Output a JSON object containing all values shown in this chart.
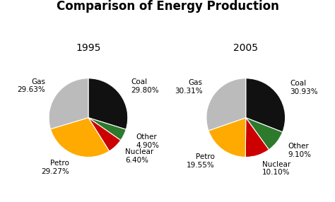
{
  "title": "Comparison of Energy Production",
  "title_fontsize": 12,
  "title_fontweight": "bold",
  "chart1_year": "1995",
  "chart2_year": "2005",
  "categories": [
    "Coal",
    "Other",
    "Nuclear",
    "Petro",
    "Gas"
  ],
  "colors": [
    "#111111",
    "#2d7a2d",
    "#cc0000",
    "#ffaa00",
    "#bbbbbb"
  ],
  "values_1995": [
    29.8,
    4.9,
    6.4,
    29.27,
    29.63
  ],
  "values_2005": [
    30.93,
    9.1,
    10.1,
    19.55,
    30.31
  ],
  "startangle": 90,
  "background_color": "#ffffff",
  "label_fontsize": 7.5,
  "year_fontsize": 10
}
